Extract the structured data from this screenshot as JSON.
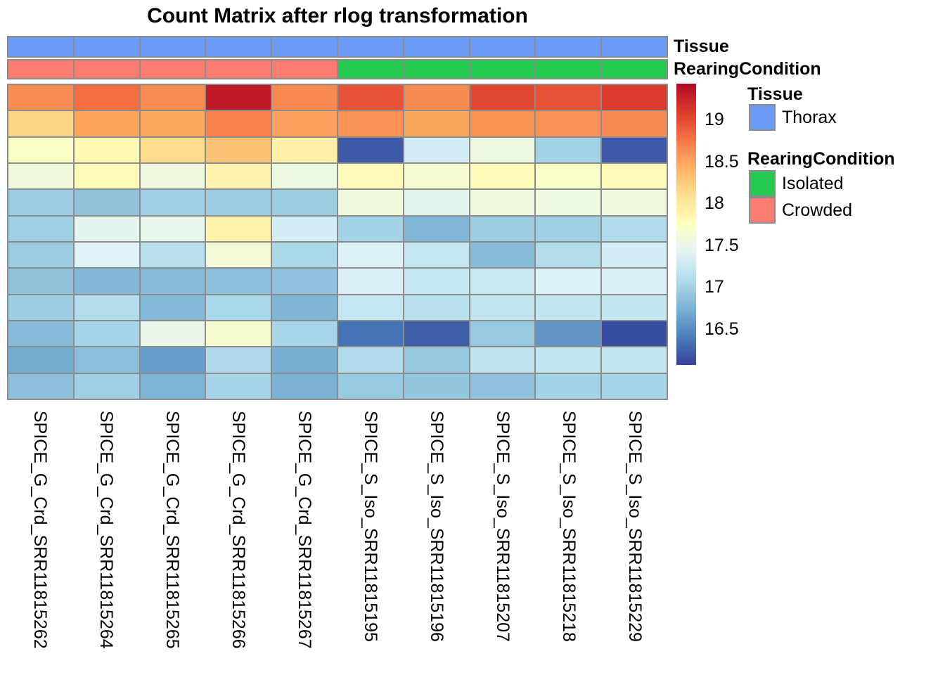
{
  "title": "Count Matrix after rlog transformation",
  "annotations": {
    "tissue": {
      "label": "Tissue",
      "per_column": [
        "Thorax",
        "Thorax",
        "Thorax",
        "Thorax",
        "Thorax",
        "Thorax",
        "Thorax",
        "Thorax",
        "Thorax",
        "Thorax"
      ]
    },
    "rearing": {
      "label": "RearingCondition",
      "per_column": [
        "Crowded",
        "Crowded",
        "Crowded",
        "Crowded",
        "Crowded",
        "Isolated",
        "Isolated",
        "Isolated",
        "Isolated",
        "Isolated"
      ]
    },
    "colors": {
      "Thorax": "#6B9DF8",
      "Isolated": "#24CB50",
      "Crowded": "#FB7D72"
    }
  },
  "legend": {
    "tissue_header": "Tissue",
    "tissue_items": [
      {
        "label": "Thorax",
        "color": "#6B9DF8"
      }
    ],
    "rearing_header": "RearingCondition",
    "rearing_items": [
      {
        "label": "Isolated",
        "color": "#24CB50"
      },
      {
        "label": "Crowded",
        "color": "#FB7D72"
      }
    ]
  },
  "chart_data": {
    "type": "heatmap",
    "title": "Count Matrix after rlog transformation",
    "columns": [
      "SPICE_G_Crd_SRR11815262",
      "SPICE_G_Crd_SRR11815264",
      "SPICE_G_Crd_SRR11815265",
      "SPICE_G_Crd_SRR11815266",
      "SPICE_G_Crd_SRR11815267",
      "SPICE_S_Iso_SRR11815195",
      "SPICE_S_Iso_SRR11815196",
      "SPICE_S_Iso_SRR11815207",
      "SPICE_S_Iso_SRR11815218",
      "SPICE_S_Iso_SRR11815229"
    ],
    "values": [
      [
        18.62,
        18.8,
        18.62,
        19.3,
        18.65,
        18.95,
        18.64,
        19.02,
        18.96,
        19.1
      ],
      [
        18.18,
        18.5,
        18.48,
        18.68,
        18.52,
        18.6,
        18.49,
        18.59,
        18.6,
        18.64
      ],
      [
        17.7,
        17.82,
        18.12,
        18.3,
        17.92,
        16.2,
        17.3,
        17.55,
        17.0,
        16.2
      ],
      [
        17.57,
        17.8,
        17.56,
        17.88,
        17.55,
        17.79,
        17.65,
        17.8,
        17.7,
        17.81
      ],
      [
        16.95,
        16.88,
        16.98,
        16.94,
        16.95,
        17.57,
        17.45,
        17.56,
        17.55,
        17.56
      ],
      [
        16.97,
        17.45,
        17.48,
        17.9,
        17.33,
        17.0,
        16.78,
        16.96,
        16.98,
        17.08
      ],
      [
        16.94,
        17.4,
        17.15,
        17.6,
        17.05,
        17.38,
        17.22,
        16.82,
        17.1,
        17.32
      ],
      [
        16.88,
        16.79,
        16.82,
        16.84,
        16.87,
        17.36,
        17.23,
        17.24,
        17.38,
        17.37
      ],
      [
        16.96,
        17.11,
        16.8,
        17.04,
        16.77,
        17.22,
        17.14,
        17.2,
        17.2,
        17.21
      ],
      [
        16.81,
        17.01,
        17.5,
        17.66,
        17.03,
        16.35,
        16.22,
        16.92,
        16.55,
        16.12
      ],
      [
        16.7,
        16.84,
        16.6,
        17.07,
        16.72,
        17.08,
        16.91,
        17.18,
        17.21,
        17.2
      ],
      [
        16.85,
        16.97,
        16.76,
        17.01,
        16.75,
        16.92,
        16.9,
        16.86,
        17.0,
        17.02
      ]
    ],
    "colormap": {
      "stops": [
        "#313695",
        "#4575B4",
        "#74ADD1",
        "#ABD9E9",
        "#E0F3F8",
        "#FFFFBF",
        "#FEE090",
        "#FDAE61",
        "#F46D43",
        "#D73027",
        "#A50026"
      ],
      "domain": [
        16.0,
        19.5
      ]
    },
    "colorbar_ticks": [
      "19",
      "18.5",
      "18",
      "17.5",
      "17",
      "16.5"
    ],
    "colorbar_range": [
      16.07,
      19.43
    ],
    "grid_color": "#8C8C8C",
    "legend_position": "right"
  }
}
